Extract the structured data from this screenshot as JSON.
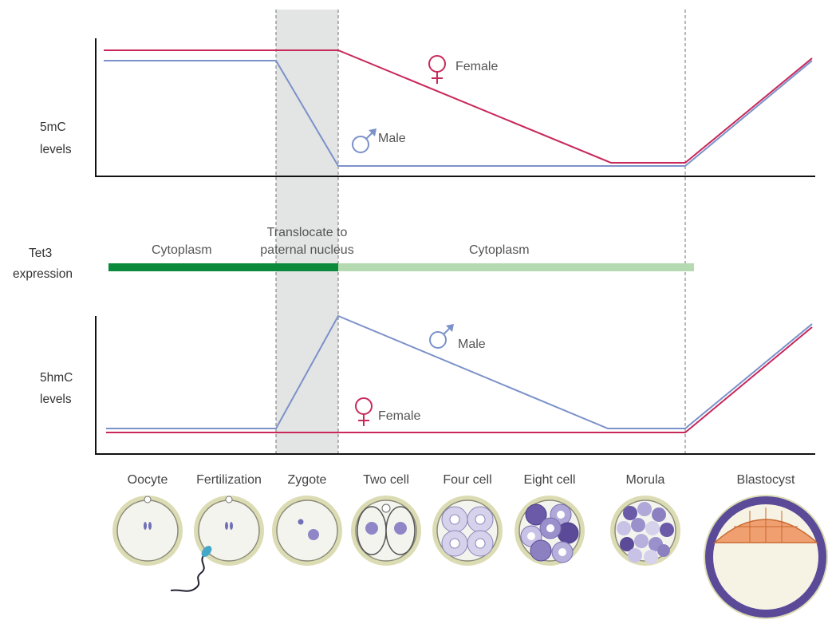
{
  "colors": {
    "female": "#c8285a",
    "male": "#7b91c9",
    "tet3_dark": "#0a8a3a",
    "tet3_light": "#b5d9b0",
    "shade": "#e3e4e4",
    "axis": "#111111"
  },
  "top_panel": {
    "ylabel": [
      "5mC",
      "levels"
    ],
    "female_label": "Female",
    "male_label": "Male"
  },
  "tet3": {
    "label": [
      "Tet3",
      "expression"
    ],
    "region_left": "Cytoplasm",
    "region_middle": [
      "Translocate to",
      "paternal nucleus"
    ],
    "region_right": "Cytoplasm"
  },
  "bottom_panel": {
    "ylabel": [
      "5hmC",
      "levels"
    ],
    "male_label": "Male",
    "female_label": "Female"
  },
  "stages": [
    "Oocyte",
    "Fertilization",
    "Zygote",
    "Two cell",
    "Four cell",
    "Eight cell",
    "Morula",
    "Blastocyst"
  ],
  "icons": {
    "female_symbol": "venus-icon",
    "male_symbol": "mars-icon"
  },
  "chart_data": [
    {
      "type": "line",
      "x": [
        "Oocyte",
        "Fertilization",
        "Zygote",
        "Two cell",
        "Four cell",
        "Eight cell",
        "Morula",
        "Blastocyst"
      ],
      "ylabel": "5mC levels",
      "series": [
        {
          "name": "Female",
          "values": [
            0.95,
            0.95,
            0.95,
            0.7,
            0.45,
            0.2,
            0.05,
            0.92
          ]
        },
        {
          "name": "Male",
          "values": [
            0.88,
            0.88,
            0.05,
            0.03,
            0.03,
            0.03,
            0.03,
            0.88
          ]
        }
      ]
    },
    {
      "type": "line",
      "x": [
        "Oocyte",
        "Fertilization",
        "Zygote",
        "Two cell",
        "Four cell",
        "Eight cell",
        "Morula",
        "Blastocyst"
      ],
      "ylabel": "5hmC levels",
      "series": [
        {
          "name": "Male",
          "values": [
            0.02,
            0.02,
            0.98,
            0.75,
            0.5,
            0.25,
            0.02,
            0.92
          ]
        },
        {
          "name": "Female",
          "values": [
            0.0,
            0.0,
            0.0,
            0.0,
            0.0,
            0.0,
            0.0,
            0.9
          ]
        }
      ]
    }
  ]
}
